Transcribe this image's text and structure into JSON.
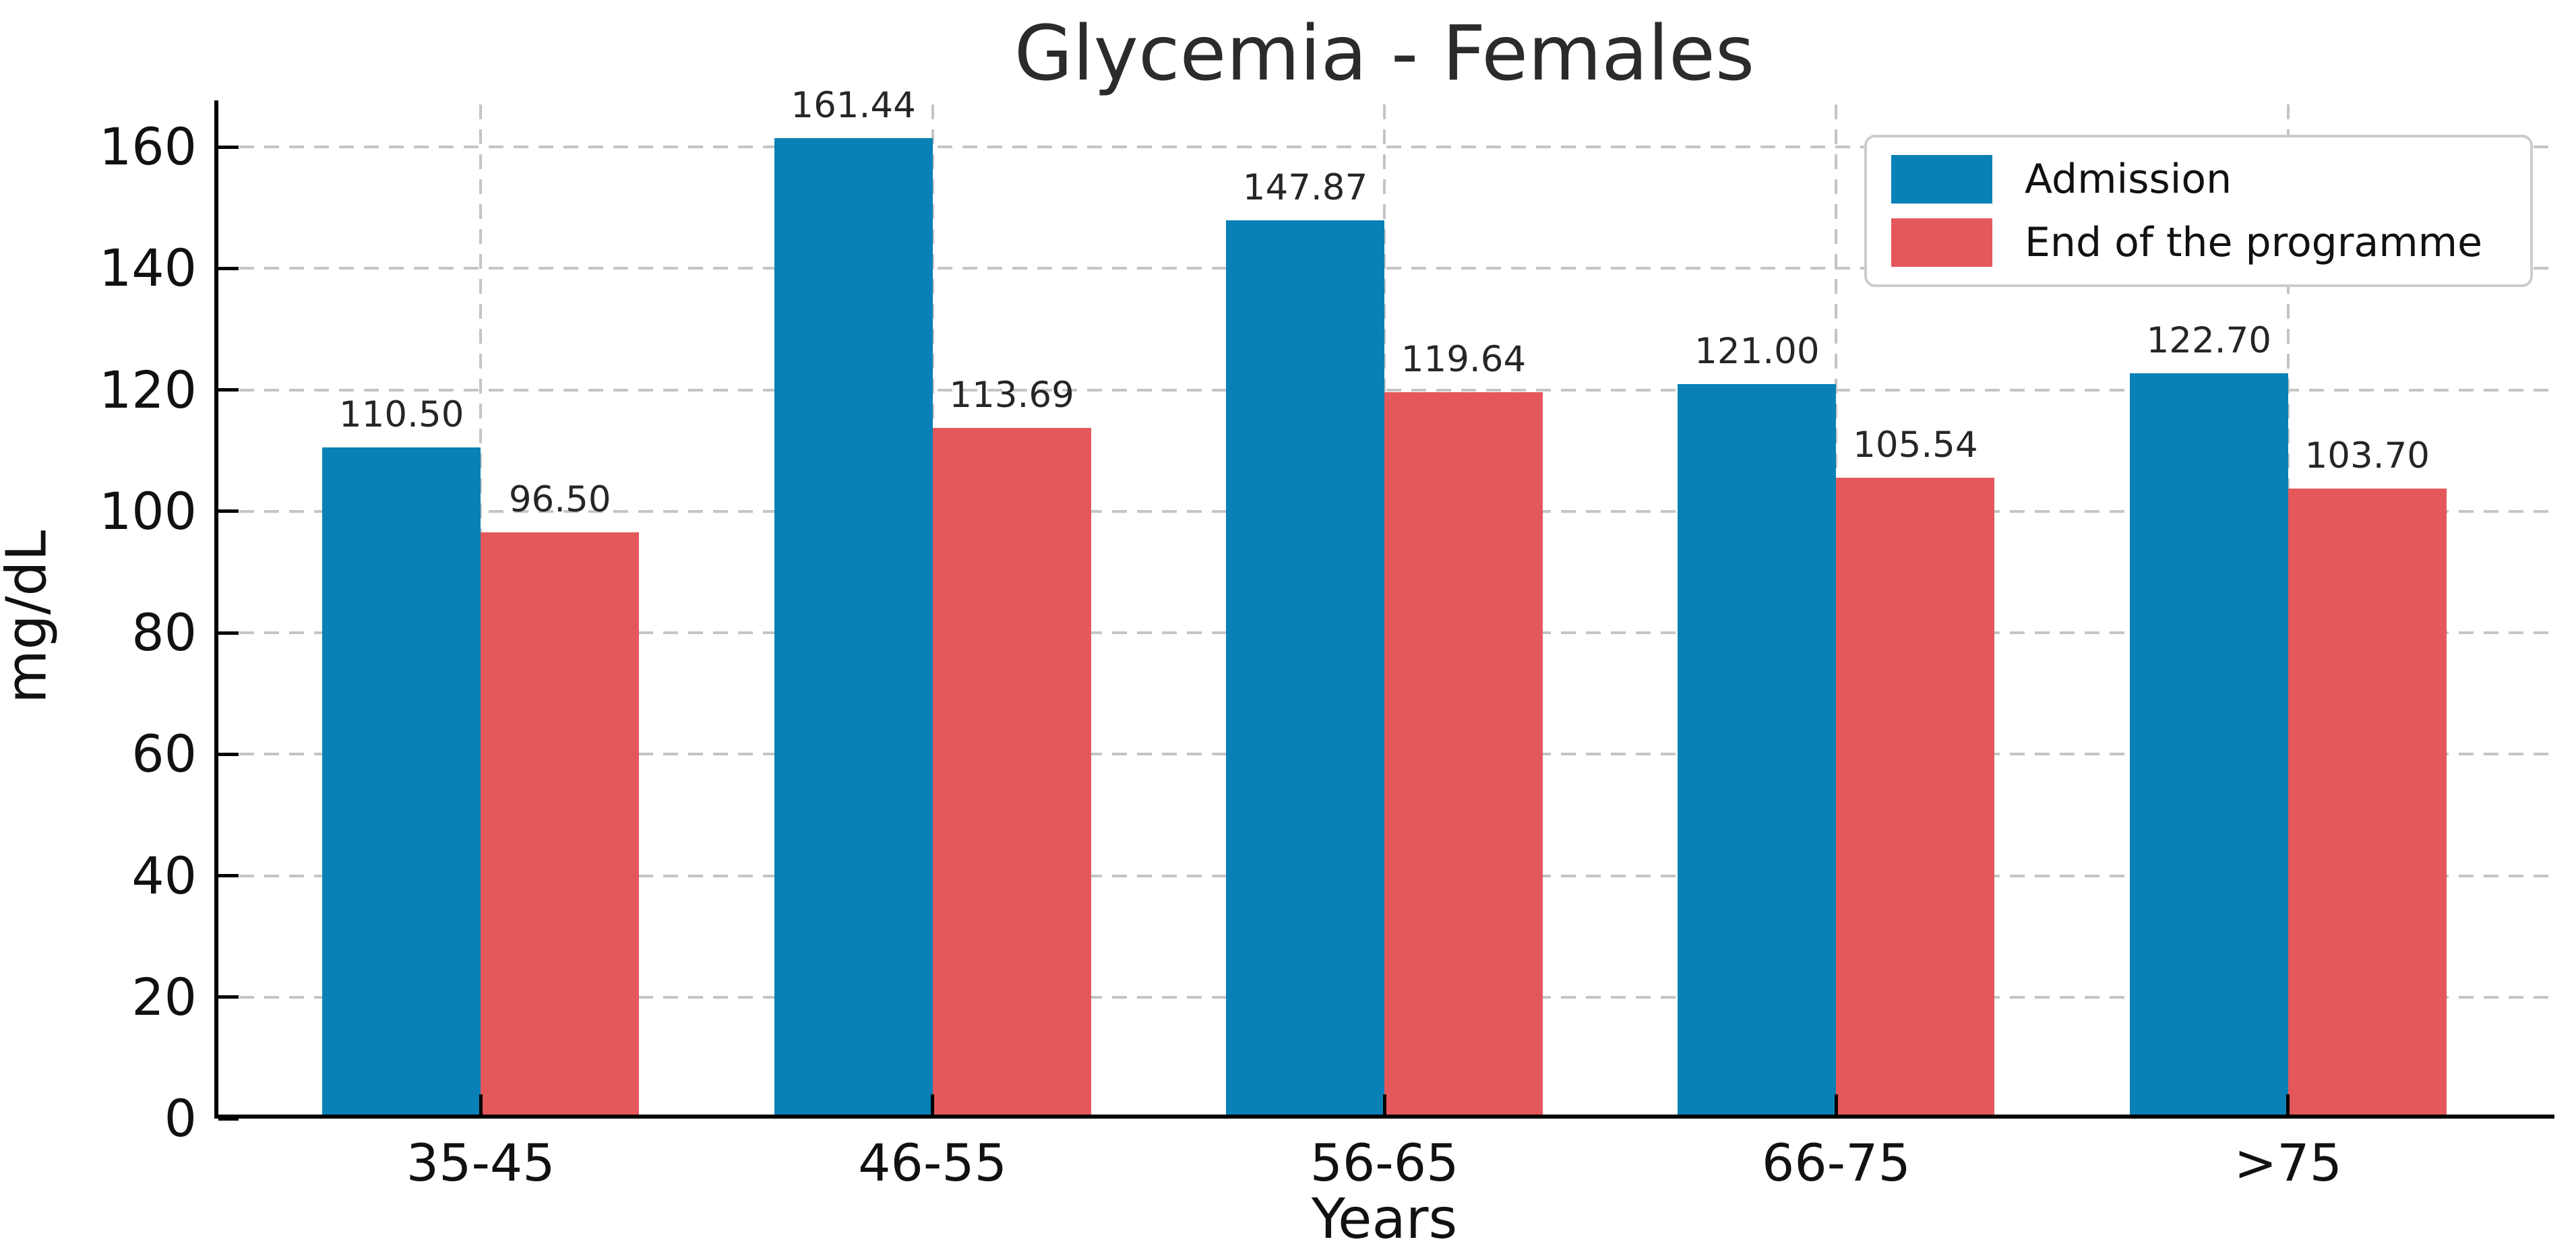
{
  "chart_data": {
    "type": "bar",
    "title": "Glycemia - Females",
    "xlabel": "Years",
    "ylabel": "mg/dL",
    "categories": [
      "35-45",
      "46-55",
      "56-65",
      "66-75",
      ">75"
    ],
    "series": [
      {
        "name": "Admission",
        "color": "#0981b6",
        "values": [
          110.5,
          161.44,
          147.87,
          121.0,
          122.7
        ]
      },
      {
        "name": "End of the programme",
        "color": "#e4585c",
        "values": [
          96.5,
          113.69,
          119.64,
          105.54,
          103.7
        ]
      }
    ],
    "ylim": [
      0,
      167
    ],
    "yticks": [
      0,
      20,
      40,
      60,
      80,
      100,
      120,
      140,
      160
    ],
    "grid": "dashed horizontal and vertical",
    "legend_position": "upper right",
    "bar_value_label_format": "2 decimals"
  }
}
